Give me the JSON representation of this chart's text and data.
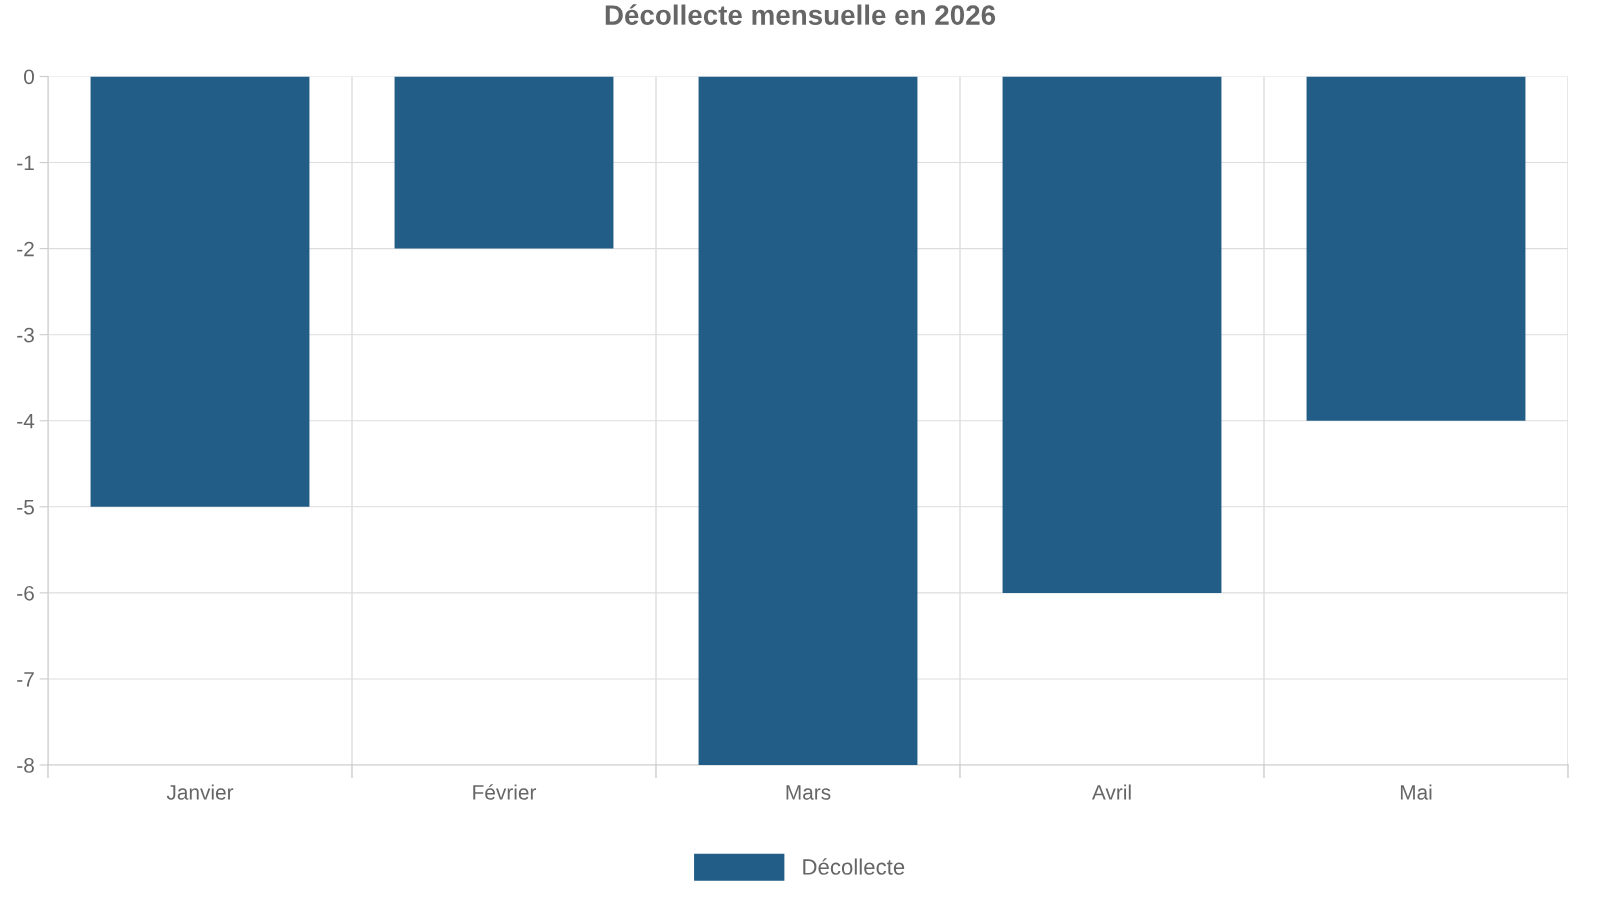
{
  "chart_data": {
    "type": "bar",
    "title": "Décollecte mensuelle en 2026",
    "categories": [
      "Janvier",
      "Février",
      "Mars",
      "Avril",
      "Mai"
    ],
    "series": [
      {
        "name": "Décollecte",
        "color": "#215d87",
        "values": [
          -5,
          -2,
          -8,
          -6,
          -4
        ]
      }
    ],
    "ylim": [
      -8,
      0
    ],
    "yticks": [
      -8,
      -7,
      -6,
      -5,
      -4,
      -3,
      -2,
      -1,
      0
    ],
    "grid": true,
    "legend": "bottom"
  }
}
